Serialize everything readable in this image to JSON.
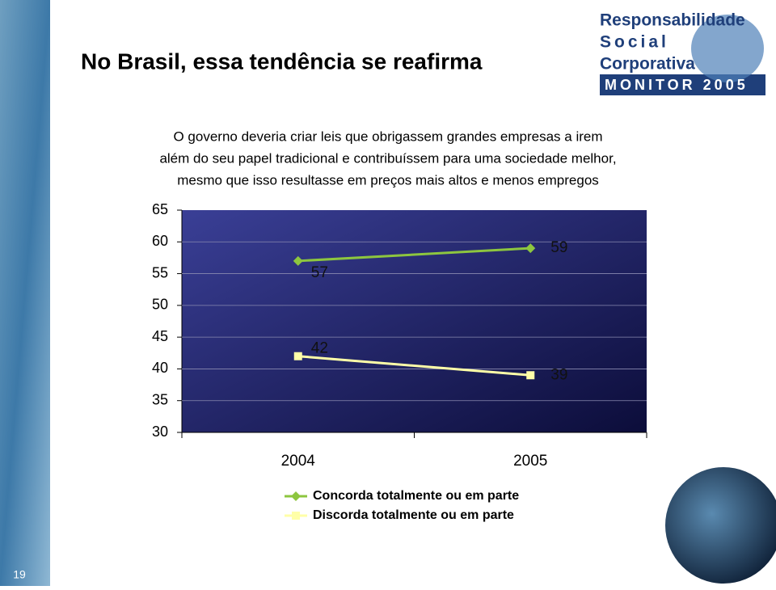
{
  "page_title": "No Brasil, essa tendência se reafirma",
  "logo": [
    "Responsabilidade",
    "Social",
    "Corporativa",
    "MONITOR 2005"
  ],
  "page_number": "19",
  "chart_data": {
    "type": "line",
    "subtitle": [
      "O governo deveria criar leis que obrigassem grandes empresas a irem",
      "além do seu papel tradicional e contribuíssem para uma sociedade melhor,",
      "mesmo que isso resultasse em preços mais altos e menos empregos"
    ],
    "categories": [
      "2004",
      "2005"
    ],
    "series": [
      {
        "name": "Concorda totalmente ou em parte",
        "color": "#8dc63f",
        "marker": "diamond",
        "values": [
          57,
          59
        ]
      },
      {
        "name": "Discorda totalmente ou em parte",
        "color": "#ffffa8",
        "marker": "square",
        "values": [
          42,
          39
        ]
      }
    ],
    "ylim": [
      30,
      65
    ],
    "yticks": [
      30,
      35,
      40,
      45,
      50,
      55,
      60,
      65
    ],
    "grid": true
  }
}
